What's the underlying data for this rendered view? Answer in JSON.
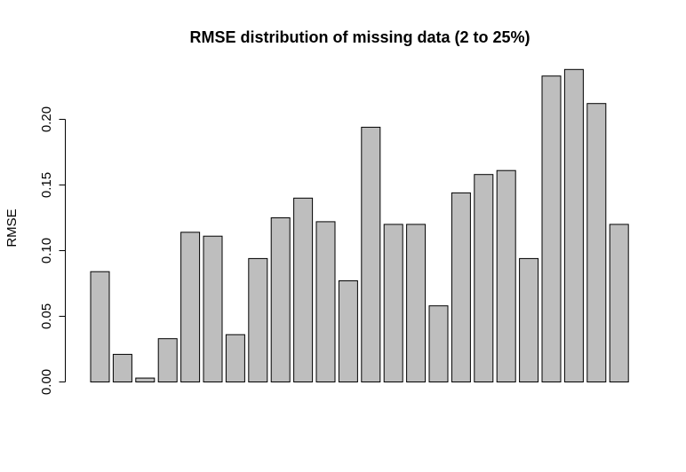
{
  "chart_data": {
    "type": "bar",
    "title": "RMSE distribution of missing data (2 to 25%)",
    "xlabel": "",
    "ylabel": "RMSE",
    "ylim": [
      0,
      0.25
    ],
    "yticks": [
      "0.00",
      "0.05",
      "0.10",
      "0.15",
      "0.20"
    ],
    "grid": false,
    "bar_color": "#bebebe",
    "edge_color": "#000000",
    "values": [
      0.084,
      0.021,
      0.003,
      0.033,
      0.114,
      0.111,
      0.036,
      0.094,
      0.125,
      0.14,
      0.122,
      0.077,
      0.194,
      0.12,
      0.12,
      0.058,
      0.144,
      0.158,
      0.161,
      0.094,
      0.233,
      0.238,
      0.212,
      0.12
    ]
  }
}
